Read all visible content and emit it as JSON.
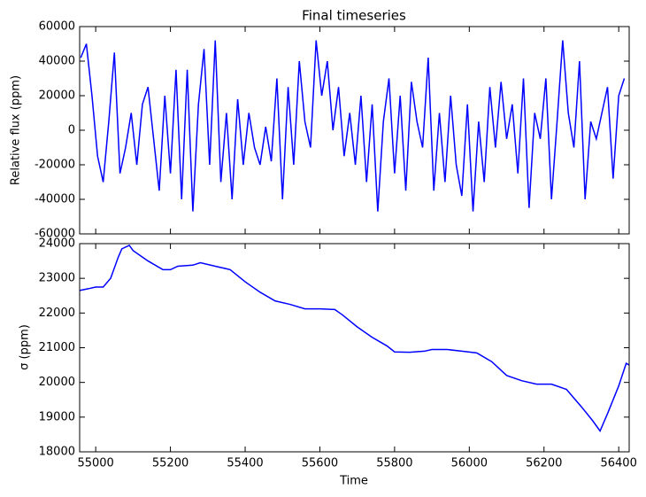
{
  "chart_data": [
    {
      "type": "line",
      "title": "Final timeseries",
      "y_label": "Relative flux (ppm)",
      "xlim": [
        54957,
        56428
      ],
      "ylim": [
        -60000,
        60000
      ],
      "yticks": [
        -60000,
        -40000,
        -20000,
        0,
        20000,
        40000,
        60000
      ],
      "x": [
        54960,
        54975,
        54990,
        55005,
        55020,
        55035,
        55050,
        55065,
        55080,
        55095,
        55110,
        55125,
        55140,
        55155,
        55170,
        55185,
        55200,
        55215,
        55230,
        55245,
        55260,
        55275,
        55290,
        55305,
        55320,
        55335,
        55350,
        55365,
        55380,
        55395,
        55410,
        55425,
        55440,
        55455,
        55470,
        55485,
        55500,
        55515,
        55530,
        55545,
        55560,
        55575,
        55590,
        55605,
        55620,
        55635,
        55650,
        55665,
        55680,
        55695,
        55710,
        55725,
        55740,
        55755,
        55770,
        55785,
        55800,
        55815,
        55830,
        55845,
        55860,
        55875,
        55890,
        55905,
        55920,
        55935,
        55950,
        55965,
        55980,
        55995,
        56010,
        56025,
        56040,
        56055,
        56070,
        56085,
        56100,
        56115,
        56130,
        56145,
        56160,
        56175,
        56190,
        56205,
        56220,
        56235,
        56250,
        56265,
        56280,
        56295,
        56310,
        56325,
        56340,
        56355,
        56370,
        56385,
        56400,
        56415
      ],
      "series": [
        {
          "color": "#0000ff",
          "values": [
            42000,
            50000,
            20000,
            -15000,
            -30000,
            5000,
            45000,
            -25000,
            -10000,
            10000,
            -20000,
            15000,
            25000,
            -5000,
            -35000,
            20000,
            -25000,
            35000,
            -40000,
            35000,
            -47000,
            15000,
            47000,
            -20000,
            52000,
            -30000,
            10000,
            -40000,
            18000,
            -20000,
            10000,
            -10000,
            -20000,
            2000,
            -18000,
            30000,
            -40000,
            25000,
            -20000,
            40000,
            5000,
            -10000,
            52000,
            20000,
            40000,
            0,
            25000,
            -15000,
            10000,
            -20000,
            20000,
            -30000,
            15000,
            -47000,
            5000,
            30000,
            -25000,
            20000,
            -35000,
            28000,
            5000,
            -10000,
            42000,
            -35000,
            10000,
            -30000,
            20000,
            -20000,
            -38000,
            15000,
            -47000,
            5000,
            -30000,
            25000,
            -10000,
            28000,
            -5000,
            15000,
            -25000,
            30000,
            -45000,
            10000,
            -5000,
            30000,
            -40000,
            5000,
            52000,
            10000,
            -10000,
            40000,
            -40000,
            5000,
            -5000,
            10000,
            25000,
            -28000,
            20000,
            30000
          ]
        }
      ]
    },
    {
      "type": "line",
      "x_label": "Time",
      "y_label": "σ (ppm)",
      "xlim": [
        54957,
        56428
      ],
      "ylim": [
        18000,
        24000
      ],
      "xticks": [
        55000,
        55200,
        55400,
        55600,
        55800,
        56000,
        56200,
        56400
      ],
      "yticks": [
        18000,
        19000,
        20000,
        21000,
        22000,
        23000,
        24000
      ],
      "x": [
        54957,
        54980,
        55000,
        55020,
        55040,
        55060,
        55070,
        55090,
        55100,
        55140,
        55180,
        55200,
        55220,
        55260,
        55280,
        55320,
        55360,
        55400,
        55440,
        55480,
        55520,
        55560,
        55600,
        55640,
        55660,
        55700,
        55740,
        55780,
        55800,
        55840,
        55880,
        55900,
        55940,
        55980,
        56020,
        56060,
        56100,
        56140,
        56180,
        56220,
        56260,
        56300,
        56330,
        56350,
        56370,
        56400,
        56420,
        56428
      ],
      "series": [
        {
          "color": "#0000ff",
          "values": [
            22650,
            22700,
            22750,
            22750,
            23000,
            23600,
            23850,
            23950,
            23800,
            23500,
            23250,
            23250,
            23350,
            23380,
            23450,
            23350,
            23250,
            22900,
            22600,
            22350,
            22250,
            22120,
            22120,
            22100,
            21950,
            21600,
            21300,
            21050,
            20880,
            20870,
            20900,
            20950,
            20950,
            20900,
            20850,
            20600,
            20200,
            20050,
            19950,
            19950,
            19800,
            19300,
            18900,
            18600,
            19100,
            19900,
            20550,
            20500
          ]
        }
      ]
    }
  ]
}
